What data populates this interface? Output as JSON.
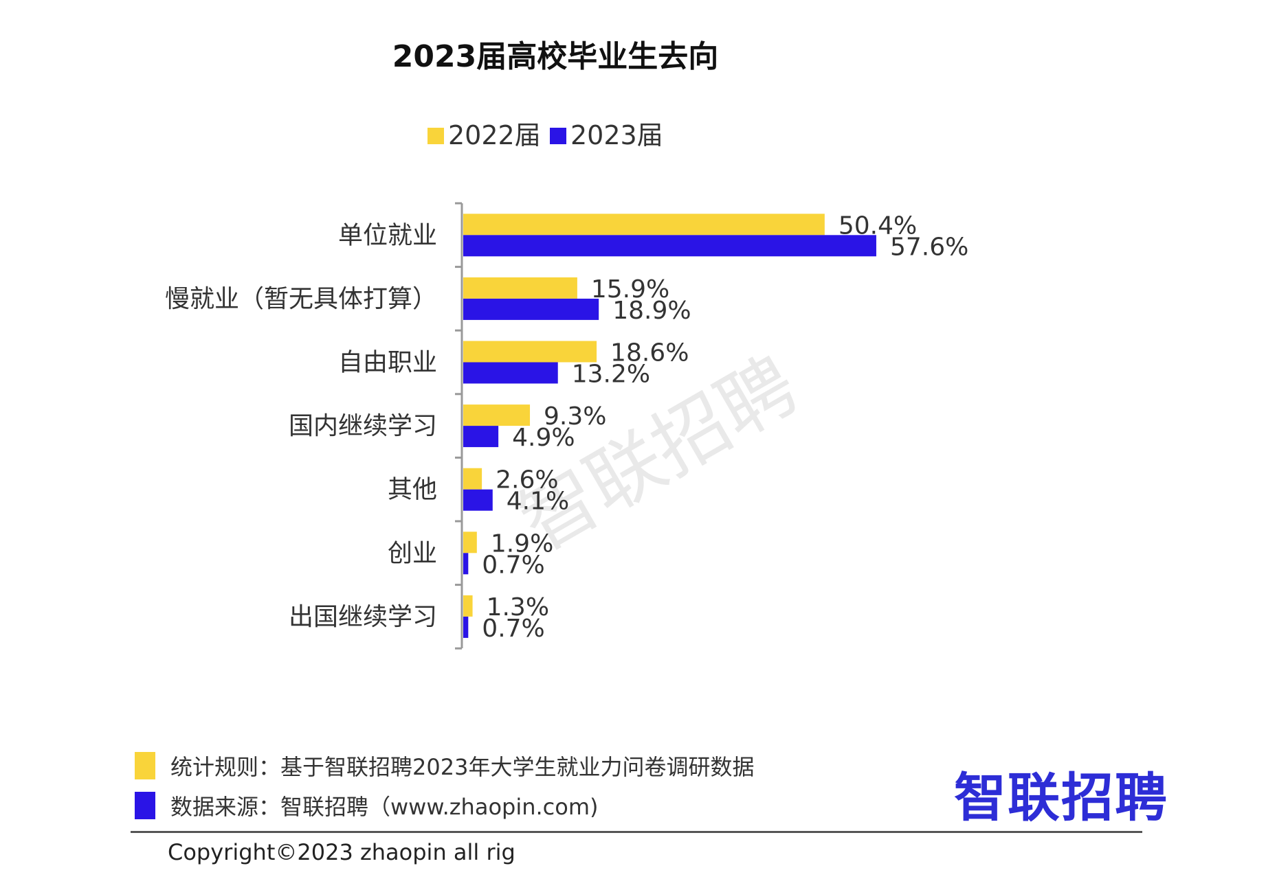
{
  "colors": {
    "s2022": "#F9D43A",
    "s2023": "#2A14E6",
    "axis": "#999999"
  },
  "chart_data": {
    "type": "bar",
    "orientation": "horizontal",
    "title": "2023届高校毕业生去向",
    "legend_position": "top",
    "categories": [
      "单位就业",
      "慢就业（暂无具体打算）",
      "自由职业",
      "国内继续学习",
      "其他",
      "创业",
      "出国继续学习"
    ],
    "series": [
      {
        "name": "2022届",
        "values": [
          50.4,
          15.9,
          18.6,
          9.3,
          2.6,
          1.9,
          1.3
        ],
        "labels": [
          "50.4%",
          "15.9%",
          "18.6%",
          "9.3%",
          "2.6%",
          "1.9%",
          "1.3%"
        ]
      },
      {
        "name": "2023届",
        "values": [
          57.6,
          18.9,
          13.2,
          4.9,
          4.1,
          0.7,
          0.7
        ],
        "labels": [
          "57.6%",
          "18.9%",
          "13.2%",
          "4.9%",
          "4.1%",
          "0.7%",
          "0.7%"
        ]
      }
    ],
    "xlim": [
      0,
      60
    ],
    "grid": false
  },
  "watermark": "智联招聘",
  "footer": {
    "rule_note": "统计规则：基于智联招聘2023年大学生就业力问卷调研数据",
    "source_note": "数据来源：智联招聘（www.zhaopin.com)",
    "brand": "智联招聘",
    "copyright": "Copyright©2023 zhaopin all rig"
  }
}
